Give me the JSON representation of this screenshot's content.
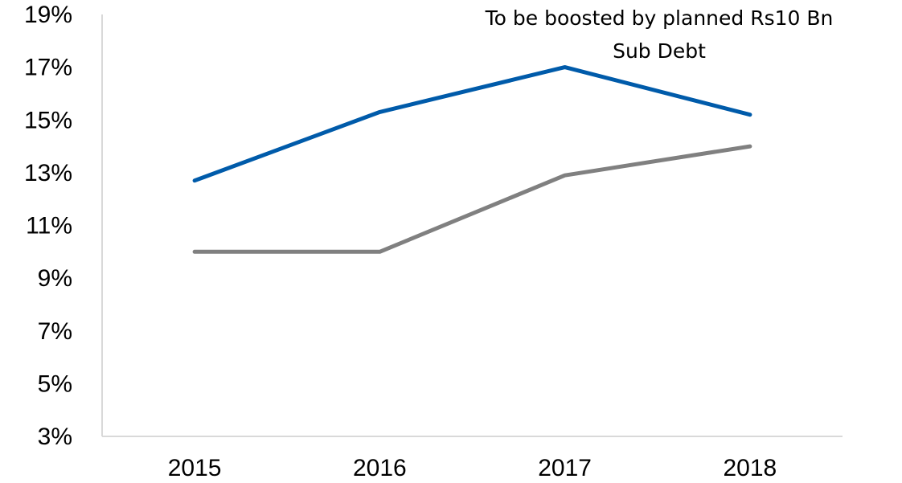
{
  "chart_data": {
    "type": "line",
    "categories": [
      "2015",
      "2016",
      "2017",
      "2018"
    ],
    "series": [
      {
        "values": [
          12.7,
          15.3,
          17.0,
          15.2
        ],
        "color": "#005BAA"
      },
      {
        "values": [
          10.0,
          10.0,
          12.9,
          14.0
        ],
        "color": "#808080"
      }
    ],
    "y_ticks": [
      "3%",
      "5%",
      "7%",
      "9%",
      "11%",
      "13%",
      "15%",
      "17%",
      "19%"
    ],
    "ylim": [
      3,
      19
    ],
    "grid": false,
    "annotation": {
      "line1": "To be boosted by planned Rs10 Bn",
      "line2": "Sub Debt"
    }
  }
}
